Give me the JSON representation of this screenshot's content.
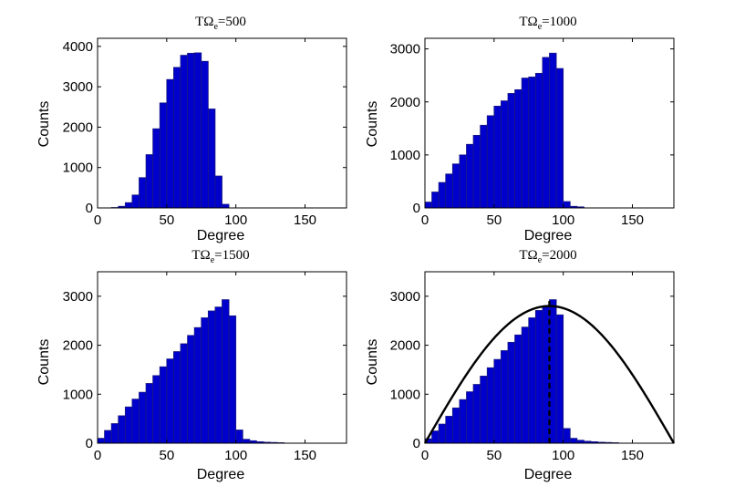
{
  "chart_data": [
    {
      "type": "bar",
      "title": "TΩ",
      "title_sub": "e",
      "title_value": "=500",
      "xlabel": "Degree",
      "ylabel": "Counts",
      "xlim": [
        0,
        180
      ],
      "ylim": [
        0,
        4200
      ],
      "xticks": [
        0,
        50,
        100,
        150
      ],
      "yticks": [
        0,
        1000,
        2000,
        3000,
        4000
      ],
      "bin_width": 5,
      "bin_starts": [
        15,
        20,
        25,
        30,
        35,
        40,
        45,
        50,
        55,
        60,
        65,
        70,
        75,
        80,
        85
      ],
      "values": [
        10,
        40,
        130,
        320,
        750,
        1320,
        1960,
        2600,
        3180,
        3480,
        3780,
        3830,
        3840,
        3630,
        2450,
        790,
        90
      ],
      "bins_all_starts": [
        10,
        15,
        20,
        25,
        30,
        35,
        40,
        45,
        50,
        55,
        60,
        65,
        70,
        75,
        80,
        85,
        90
      ]
    },
    {
      "type": "bar",
      "title": "TΩ",
      "title_sub": "e",
      "title_value": "=1000",
      "xlabel": "Degree",
      "ylabel": "Counts",
      "xlim": [
        0,
        180
      ],
      "ylim": [
        0,
        3200
      ],
      "xticks": [
        0,
        50,
        100,
        150
      ],
      "yticks": [
        0,
        1000,
        2000,
        3000
      ],
      "bin_width": 5,
      "bins_all_starts": [
        0,
        5,
        10,
        15,
        20,
        25,
        30,
        35,
        40,
        45,
        50,
        55,
        60,
        65,
        70,
        75,
        80,
        85,
        90,
        95,
        100,
        105,
        110
      ],
      "values": [
        110,
        300,
        480,
        640,
        830,
        1000,
        1200,
        1370,
        1560,
        1740,
        1920,
        2020,
        2160,
        2230,
        2450,
        2470,
        2540,
        2840,
        2920,
        2630,
        120,
        30,
        20
      ]
    },
    {
      "type": "bar",
      "title": "TΩ",
      "title_sub": "e",
      "title_value": "=1500",
      "xlabel": "Degree",
      "ylabel": "Counts",
      "xlim": [
        0,
        180
      ],
      "ylim": [
        0,
        3500
      ],
      "xticks": [
        0,
        50,
        100,
        150
      ],
      "yticks": [
        0,
        1000,
        2000,
        3000
      ],
      "bin_width": 5,
      "bins_all_starts": [
        0,
        5,
        10,
        15,
        20,
        25,
        30,
        35,
        40,
        45,
        50,
        55,
        60,
        65,
        70,
        75,
        80,
        85,
        90,
        95,
        100,
        105,
        110,
        115,
        120,
        125,
        130
      ],
      "values": [
        100,
        260,
        400,
        560,
        740,
        900,
        1040,
        1220,
        1380,
        1560,
        1720,
        1870,
        2030,
        2200,
        2360,
        2560,
        2700,
        2780,
        2930,
        2600,
        270,
        80,
        50,
        30,
        20,
        15,
        10
      ]
    },
    {
      "type": "bar",
      "title": "TΩ",
      "title_sub": "e",
      "title_value": "=2000",
      "xlabel": "Degree",
      "ylabel": "Counts",
      "xlim": [
        0,
        180
      ],
      "ylim": [
        0,
        3500
      ],
      "xticks": [
        0,
        50,
        100,
        150
      ],
      "yticks": [
        0,
        1000,
        2000,
        3000
      ],
      "bin_width": 5,
      "bins_all_starts": [
        0,
        5,
        10,
        15,
        20,
        25,
        30,
        35,
        40,
        45,
        50,
        55,
        60,
        65,
        70,
        75,
        80,
        85,
        90,
        95,
        100,
        105,
        110,
        115,
        120,
        125,
        130,
        135
      ],
      "values": [
        90,
        250,
        390,
        550,
        720,
        890,
        1050,
        1200,
        1370,
        1540,
        1710,
        1890,
        2060,
        2210,
        2370,
        2560,
        2710,
        2780,
        2930,
        2620,
        300,
        100,
        60,
        40,
        30,
        20,
        15,
        10
      ],
      "curve": {
        "type": "sine",
        "amplitude": 2800,
        "x_start": 0,
        "x_end": 180
      },
      "marker_line": {
        "x": 90,
        "style": "dashed",
        "y_top": 2950
      }
    }
  ]
}
